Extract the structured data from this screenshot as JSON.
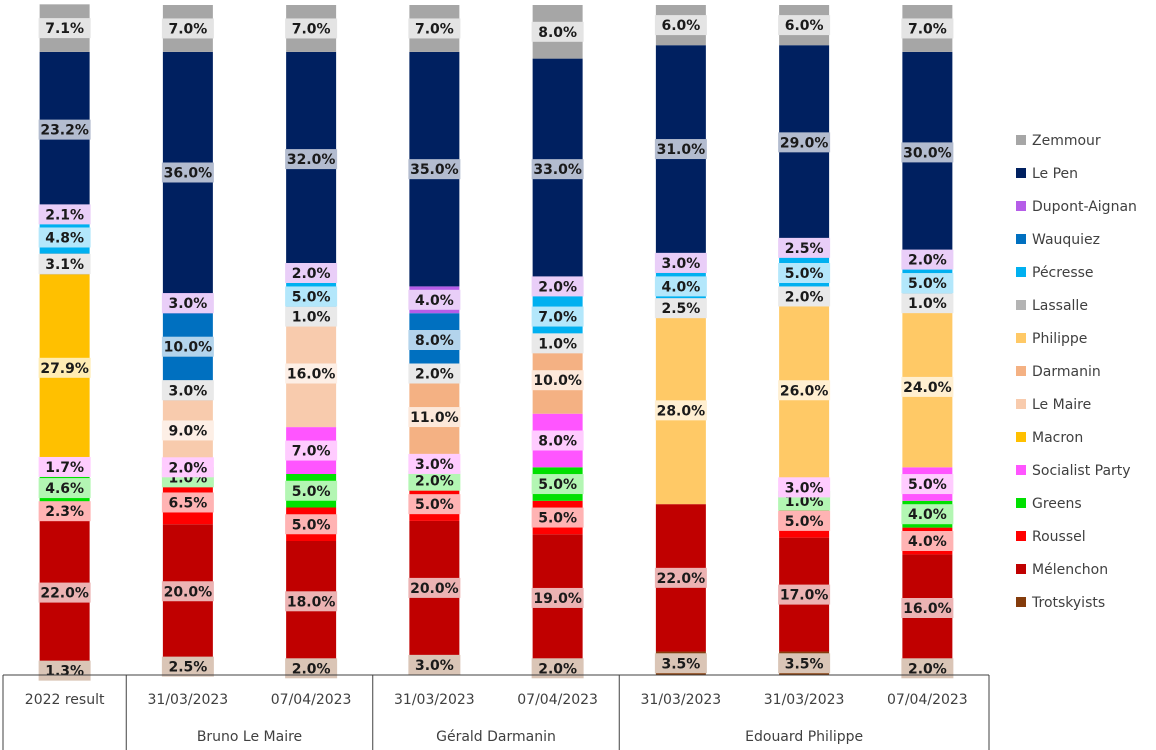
{
  "chart_data": {
    "type": "stacked_bar",
    "categories": [
      "2022 result",
      "31/03/2023",
      "07/04/2023",
      "31/03/2023",
      "07/04/2023",
      "31/03/2023",
      "31/03/2023",
      "07/04/2023"
    ],
    "category_groups": [
      null,
      "Bruno Le Maire",
      "Bruno Le Maire",
      "Gérald Darmanin",
      "Gérald Darmanin",
      "Edouard Philippe",
      "Edouard Philippe",
      "Edouard Philippe"
    ],
    "ylim": [
      0,
      100
    ],
    "legend": "right",
    "series": [
      {
        "name": "Trotskyists",
        "color": "#843c0c",
        "values": [
          1.3,
          2.5,
          2.0,
          3.0,
          2.0,
          3.5,
          3.5,
          2.0
        ],
        "value_labels": [
          "1.3%",
          "2.5%",
          "2.0%",
          "3.0%",
          "2.0%",
          "3.5%",
          "3.5%",
          "2.0%"
        ]
      },
      {
        "name": "Mélenchon",
        "color": "#c00000",
        "values": [
          22.0,
          20.0,
          18.0,
          20.0,
          19.0,
          22.0,
          17.0,
          16.0
        ],
        "value_labels": [
          "22.0%",
          "20.0%",
          "18.0%",
          "20.0%",
          "19.0%",
          "22.0%",
          "17.0%",
          "16.0%"
        ]
      },
      {
        "name": "Roussel",
        "color": "#ff0000",
        "values": [
          2.3,
          6.5,
          5.0,
          5.0,
          5.0,
          null,
          5.0,
          4.0
        ],
        "value_labels": [
          "2.3%",
          "6.5%",
          "5.0%",
          "5.0%",
          "5.0%",
          null,
          "5.0%",
          "4.0%"
        ]
      },
      {
        "name": "Greens",
        "color": "#00e000",
        "values": [
          4.6,
          1.0,
          5.0,
          2.0,
          5.0,
          null,
          1.0,
          4.0
        ],
        "value_labels": [
          "4.6%",
          "1.0%",
          "5.0%",
          "2.0%",
          "5.0%",
          null,
          "1.0%",
          "4.0%"
        ]
      },
      {
        "name": "Socialist Party",
        "color": "#ff55ff",
        "values": [
          1.7,
          2.0,
          7.0,
          3.0,
          8.0,
          null,
          3.0,
          5.0
        ],
        "value_labels": [
          "1.7%",
          "2.0%",
          "7.0%",
          "3.0%",
          "8.0%",
          null,
          "3.0%",
          "5.0%"
        ]
      },
      {
        "name": "Macron",
        "color": "#ffc000",
        "values": [
          27.9,
          null,
          null,
          null,
          null,
          null,
          null,
          null
        ],
        "value_labels": [
          "27.9%",
          null,
          null,
          null,
          null,
          null,
          null,
          null
        ]
      },
      {
        "name": "Le Maire",
        "color": "#f8cbad",
        "values": [
          null,
          9.0,
          16.0,
          null,
          null,
          null,
          null,
          null
        ],
        "value_labels": [
          null,
          "9.0%",
          "16.0%",
          null,
          null,
          null,
          null,
          null
        ]
      },
      {
        "name": "Darmanin",
        "color": "#f4b183",
        "values": [
          null,
          null,
          null,
          11.0,
          10.0,
          null,
          null,
          null
        ],
        "value_labels": [
          null,
          null,
          null,
          "11.0%",
          "10.0%",
          null,
          null,
          null
        ]
      },
      {
        "name": "Philippe",
        "color": "#ffc966",
        "values": [
          null,
          null,
          null,
          null,
          null,
          28.0,
          26.0,
          24.0
        ],
        "value_labels": [
          null,
          null,
          null,
          null,
          null,
          "28.0%",
          "26.0%",
          "24.0%"
        ]
      },
      {
        "name": "Lassalle",
        "color": "#b4b4b4",
        "values": [
          3.1,
          3.0,
          1.0,
          2.0,
          1.0,
          2.5,
          2.0,
          1.0
        ],
        "value_labels": [
          "3.1%",
          "3.0%",
          "1.0%",
          "2.0%",
          "1.0%",
          "2.5%",
          "2.0%",
          "1.0%"
        ]
      },
      {
        "name": "Pécresse",
        "color": "#00b0f0",
        "values": [
          4.8,
          null,
          5.0,
          null,
          7.0,
          4.0,
          5.0,
          5.0
        ],
        "value_labels": [
          "4.8%",
          null,
          "5.0%",
          null,
          "7.0%",
          "4.0%",
          "5.0%",
          "5.0%"
        ]
      },
      {
        "name": "Wauquiez",
        "color": "#0070c0",
        "values": [
          null,
          10.0,
          null,
          8.0,
          null,
          null,
          null,
          null
        ],
        "value_labels": [
          null,
          "10.0%",
          null,
          "8.0%",
          null,
          null,
          null,
          null
        ]
      },
      {
        "name": "Dupont-Aignan",
        "color": "#b55de8",
        "values": [
          2.1,
          3.0,
          2.0,
          4.0,
          2.0,
          3.0,
          2.5,
          2.0
        ],
        "value_labels": [
          "2.1%",
          "3.0%",
          "2.0%",
          "4.0%",
          "2.0%",
          "3.0%",
          "2.5%",
          "2.0%"
        ]
      },
      {
        "name": "Le Pen",
        "color": "#002060",
        "values": [
          23.2,
          36.0,
          32.0,
          35.0,
          33.0,
          31.0,
          29.0,
          30.0
        ],
        "value_labels": [
          "23.2%",
          "36.0%",
          "32.0%",
          "35.0%",
          "33.0%",
          "31.0%",
          "29.0%",
          "30.0%"
        ]
      },
      {
        "name": "Zemmour",
        "color": "#a6a6a6",
        "values": [
          7.1,
          7.0,
          7.0,
          7.0,
          8.0,
          6.0,
          6.0,
          7.0
        ],
        "value_labels": [
          "7.1%",
          "7.0%",
          "7.0%",
          "7.0%",
          "8.0%",
          "6.0%",
          "6.0%",
          "7.0%"
        ]
      }
    ]
  }
}
